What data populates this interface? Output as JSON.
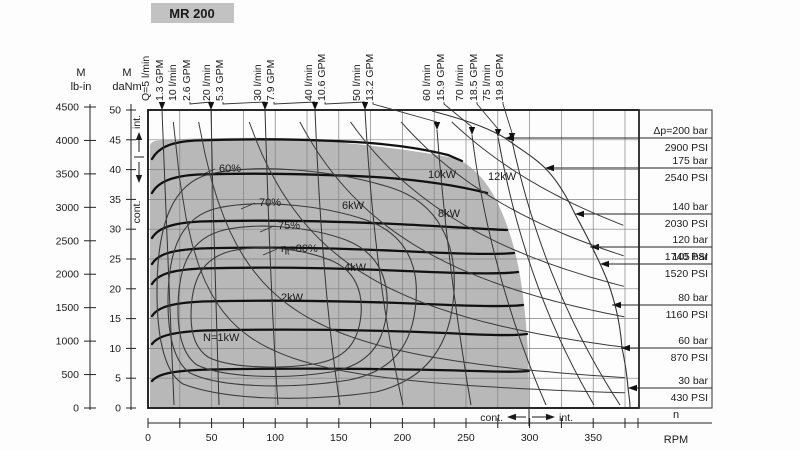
{
  "title": "MR 200",
  "chart_data": {
    "type": "line",
    "title": "MR 200",
    "description": "Hydraulic motor performance map: torque vs speed with constant-flow lines, constant-pressure lines, efficiency contours and constant-power curves",
    "x_axis": {
      "name": "n",
      "unit": "RPM",
      "major_ticks": [
        0,
        50,
        100,
        150,
        200,
        250,
        300,
        350
      ],
      "minor_step_rpm": 25,
      "range_rpm": [
        0,
        380
      ]
    },
    "y_axis_outer": {
      "name": "M",
      "unit": "lb-in",
      "ticks": [
        4500,
        4000,
        3500,
        3000,
        2500,
        2000,
        1500,
        1000,
        500,
        0
      ]
    },
    "y_axis_inner": {
      "name": "M",
      "unit": "daNm",
      "ticks": [
        50,
        45,
        40,
        35,
        30,
        25,
        20,
        15,
        10,
        5,
        0
      ]
    },
    "flow_lines": [
      {
        "label": "Q=5 l/min",
        "gpm": "1.3 GPM",
        "lpm": 5
      },
      {
        "label": "10 l/min",
        "gpm": "2.6 GPM",
        "lpm": 10
      },
      {
        "label": "20 l/min",
        "gpm": "5.3 GPM",
        "lpm": 20
      },
      {
        "label": "30 l/min",
        "gpm": "7.9 GPM",
        "lpm": 30
      },
      {
        "label": "40 l/min",
        "gpm": "10.6 GPM",
        "lpm": 40
      },
      {
        "label": "50 l/min",
        "gpm": "13.2 GPM",
        "lpm": 50
      },
      {
        "label": "60 l/min",
        "gpm": "15.9 GPM",
        "lpm": 60
      },
      {
        "label": "70 l/min",
        "gpm": "18.5 GPM",
        "lpm": 70
      },
      {
        "label": "75 l/min",
        "gpm": "19.8 GPM",
        "lpm": 75
      }
    ],
    "pressure_lines": [
      {
        "bar_label": "Δp=200 bar",
        "psi_label": "2900 PSI",
        "bar": 200,
        "psi": 2900
      },
      {
        "bar_label": "175 bar",
        "psi_label": "2540 PSI",
        "bar": 175,
        "psi": 2540
      },
      {
        "bar_label": "140 bar",
        "psi_label": "2030 PSI",
        "bar": 140,
        "psi": 2030
      },
      {
        "bar_label": "120 bar",
        "psi_label": "1740 PSI",
        "bar": 120,
        "psi": 1740
      },
      {
        "bar_label": "105 bar",
        "psi_label": "1520 PSI",
        "bar": 105,
        "psi": 1520
      },
      {
        "bar_label": "80 bar",
        "psi_label": "1160 PSI",
        "bar": 80,
        "psi": 1160
      },
      {
        "bar_label": "60 bar",
        "psi_label": "870 PSI",
        "bar": 60,
        "psi": 870
      },
      {
        "bar_label": "30 bar",
        "psi_label": "430 PSI",
        "bar": 30,
        "psi": 430
      }
    ],
    "efficiency_contours": [
      "60%",
      "70%",
      "75%",
      "ηt=80%"
    ],
    "power_curves": [
      "N=1kW",
      "2kW",
      "4kW",
      "6kW",
      "8kW",
      "10kW",
      "12kW"
    ],
    "zone_markers": {
      "left_top": "int.",
      "left_bottom": "cont.",
      "bottom_left": "cont.",
      "bottom_right": "int.",
      "cont_int_divider_rpm": 300
    },
    "colors": {
      "region_fill": "#b8b8b8",
      "line": "#1a1a1a",
      "title_box": "#c2c2c2"
    }
  }
}
